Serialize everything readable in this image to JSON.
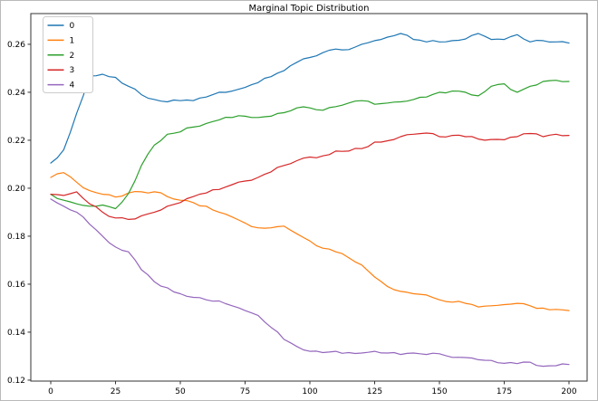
{
  "figure": {
    "title": "Marginal Topic Distribution"
  },
  "chart_data": {
    "type": "line",
    "title": "Marginal Topic Distribution",
    "xlabel": "",
    "ylabel": "",
    "grid": false,
    "legend_position": "upper left",
    "xlim": [
      -7.7,
      207.0
    ],
    "ylim": [
      0.1196,
      0.2728
    ],
    "xticks": [
      0,
      25,
      50,
      75,
      100,
      125,
      150,
      175,
      200
    ],
    "yticks": [
      0.12,
      0.14,
      0.16,
      0.18,
      0.2,
      0.22,
      0.24,
      0.26
    ],
    "x": [
      0,
      5,
      10,
      15,
      20,
      25,
      30,
      35,
      40,
      45,
      50,
      55,
      60,
      65,
      70,
      75,
      80,
      85,
      90,
      95,
      100,
      105,
      110,
      115,
      120,
      125,
      130,
      135,
      140,
      145,
      150,
      155,
      160,
      165,
      170,
      175,
      180,
      185,
      190,
      195,
      200
    ],
    "series": [
      {
        "name": "0",
        "color": "#1f77b4",
        "values": [
          0.2105,
          0.216,
          0.2312,
          0.2468,
          0.2475,
          0.2462,
          0.2425,
          0.239,
          0.237,
          0.236,
          0.2365,
          0.2365,
          0.238,
          0.24,
          0.2405,
          0.242,
          0.244,
          0.2465,
          0.249,
          0.2525,
          0.2545,
          0.2565,
          0.258,
          0.2578,
          0.26,
          0.2615,
          0.263,
          0.2645,
          0.262,
          0.261,
          0.261,
          0.2615,
          0.2622,
          0.2645,
          0.262,
          0.262,
          0.264,
          0.261,
          0.2615,
          0.261,
          0.2605
        ]
      },
      {
        "name": "1",
        "color": "#ff7f0e",
        "values": [
          0.2045,
          0.2065,
          0.2025,
          0.199,
          0.1975,
          0.1963,
          0.198,
          0.1985,
          0.1985,
          0.1965,
          0.195,
          0.194,
          0.1925,
          0.19,
          0.188,
          0.1855,
          0.1835,
          0.1835,
          0.1842,
          0.181,
          0.178,
          0.175,
          0.1735,
          0.171,
          0.168,
          0.163,
          0.159,
          0.157,
          0.156,
          0.1555,
          0.1535,
          0.1525,
          0.152,
          0.1505,
          0.151,
          0.1515,
          0.152,
          0.151,
          0.15,
          0.1495,
          0.149
        ]
      },
      {
        "name": "2",
        "color": "#2ca02c",
        "values": [
          0.1975,
          0.195,
          0.1935,
          0.1925,
          0.193,
          0.1915,
          0.1978,
          0.2095,
          0.218,
          0.2225,
          0.2235,
          0.2255,
          0.227,
          0.2285,
          0.2295,
          0.23,
          0.2295,
          0.23,
          0.2315,
          0.2335,
          0.2335,
          0.2325,
          0.234,
          0.2355,
          0.2365,
          0.235,
          0.2355,
          0.236,
          0.237,
          0.238,
          0.24,
          0.2405,
          0.24,
          0.2385,
          0.2425,
          0.2435,
          0.24,
          0.2425,
          0.2445,
          0.245,
          0.2445
        ]
      },
      {
        "name": "3",
        "color": "#d62728",
        "values": [
          0.1975,
          0.197,
          0.1985,
          0.1935,
          0.19,
          0.1876,
          0.187,
          0.1885,
          0.19,
          0.1925,
          0.194,
          0.1965,
          0.198,
          0.1995,
          0.2015,
          0.203,
          0.2045,
          0.2068,
          0.2095,
          0.2115,
          0.213,
          0.2135,
          0.2155,
          0.2155,
          0.2165,
          0.2192,
          0.2198,
          0.2215,
          0.2225,
          0.223,
          0.2215,
          0.222,
          0.2215,
          0.2205,
          0.2203,
          0.2202,
          0.2215,
          0.2228,
          0.2215,
          0.2225,
          0.222
        ]
      },
      {
        "name": "4",
        "color": "#9467bd",
        "values": [
          0.1955,
          0.1925,
          0.19,
          0.185,
          0.18,
          0.1755,
          0.1735,
          0.166,
          0.161,
          0.1585,
          0.156,
          0.1545,
          0.1535,
          0.153,
          0.151,
          0.149,
          0.147,
          0.142,
          0.137,
          0.134,
          0.132,
          0.1315,
          0.132,
          0.1315,
          0.1313,
          0.132,
          0.1313,
          0.1307,
          0.1313,
          0.1307,
          0.131,
          0.1295,
          0.1294,
          0.1285,
          0.1282,
          0.127,
          0.1269,
          0.1275,
          0.1258,
          0.126,
          0.1265
        ]
      }
    ],
    "legend": {
      "entries": [
        "0",
        "1",
        "2",
        "3",
        "4"
      ]
    }
  }
}
